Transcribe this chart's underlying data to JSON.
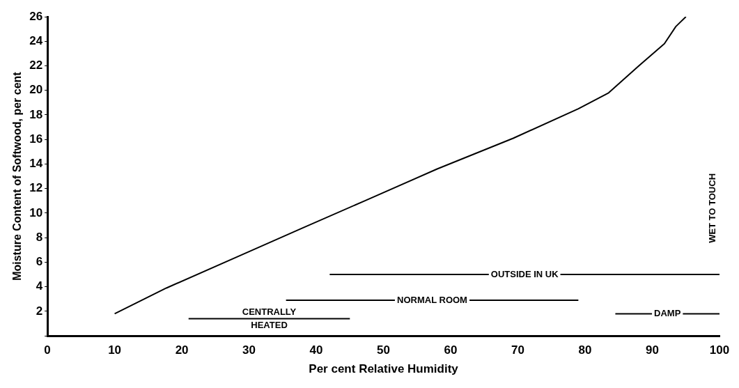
{
  "chart_data": {
    "type": "line",
    "xlabel": "Per cent Relative Humidity",
    "ylabel": "Moisture Content of Softwood, per cent",
    "xlim": [
      0,
      100
    ],
    "xticks": [
      0,
      10,
      20,
      30,
      40,
      50,
      60,
      70,
      80,
      90,
      100
    ],
    "ylim": [
      0,
      26
    ],
    "yticks": [
      {
        "value": 0,
        "label": null
      },
      2,
      4,
      6,
      8,
      10,
      12,
      14,
      16,
      18,
      20,
      22,
      24,
      26
    ],
    "grid": false,
    "legend": false,
    "marker": "none",
    "line_style": "solid",
    "series": [
      {
        "color": "#000000",
        "x": [
          10,
          17.7,
          28.9,
          38,
          47.2,
          58,
          69.3,
          79,
          83.5,
          88,
          91.8,
          93.5,
          95
        ],
        "values": [
          1.8,
          3.9,
          6.6,
          8.8,
          11,
          13.6,
          16.1,
          18.5,
          19.8,
          22,
          23.8,
          25.2,
          26
        ]
      },
      {
        "name": "OUTSIDE IN UK",
        "color": "#000000",
        "x": [
          42,
          100
        ],
        "values": [
          5,
          5
        ]
      },
      {
        "name": "NORMAL ROOM",
        "color": "#000000",
        "x": [
          35.5,
          79
        ],
        "values": [
          2.9,
          2.9
        ]
      },
      {
        "name": "CENTRALLY HEATED",
        "color": "#000000",
        "x": [
          21,
          45
        ],
        "values": [
          1.4,
          1.4
        ]
      },
      {
        "name": "DAMP",
        "color": "#000000",
        "x": [
          84.5,
          100
        ],
        "values": [
          1.8,
          1.8
        ]
      }
    ],
    "annotations": [
      "WET TO TOUCH"
    ]
  }
}
